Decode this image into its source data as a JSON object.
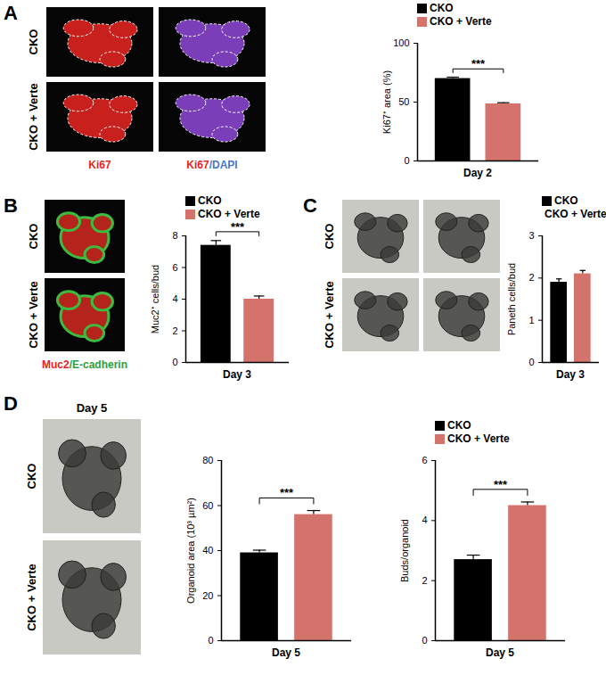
{
  "chart_data": [
    {
      "type": "bar",
      "y_label": "Ki67⁺ area (%)",
      "x_label": "Day 2",
      "categories": [
        "CKO",
        "CKO + Verte"
      ],
      "values": [
        70,
        48.5
      ],
      "errors": [
        1.2,
        1.0
      ],
      "colors": [
        "#000000",
        "#d4736c"
      ],
      "ylim": [
        0,
        100
      ],
      "yticks": [
        0,
        50,
        100
      ],
      "significance": "***",
      "legend": "top"
    },
    {
      "type": "bar",
      "y_label": "Muc2⁺ cells/bud",
      "x_label": "Day 3",
      "categories": [
        "CKO",
        "CKO + Verte"
      ],
      "values": [
        7.4,
        4.0
      ],
      "errors": [
        0.3,
        0.2
      ],
      "colors": [
        "#000000",
        "#d4736c"
      ],
      "ylim": [
        0,
        8
      ],
      "yticks": [
        0,
        2,
        4,
        6,
        8
      ],
      "significance": "***",
      "legend": "top"
    },
    {
      "type": "bar",
      "y_label": "Paneth cells/bud",
      "x_label": "Day 3",
      "categories": [
        "CKO",
        "CKO + Verte"
      ],
      "values": [
        1.9,
        2.1
      ],
      "errors": [
        0.08,
        0.08
      ],
      "colors": [
        "#000000",
        "#d4736c"
      ],
      "ylim": [
        0,
        3
      ],
      "yticks": [
        0,
        1,
        2,
        3
      ],
      "legend": "top"
    },
    {
      "type": "bar",
      "y_label": "Organoid area (10³ µm²)",
      "x_label": "Day 5",
      "categories": [
        "CKO",
        "CKO + Verte"
      ],
      "values": [
        39,
        56
      ],
      "errors": [
        1.2,
        1.8
      ],
      "colors": [
        "#000000",
        "#d4736c"
      ],
      "ylim": [
        0,
        80
      ],
      "yticks": [
        0,
        20,
        40,
        60,
        80
      ],
      "significance": "***"
    },
    {
      "type": "bar",
      "y_label": "Buds/organoid",
      "x_label": "Day 5",
      "categories": [
        "CKO",
        "CKO + Verte"
      ],
      "values": [
        2.7,
        4.5
      ],
      "errors": [
        0.15,
        0.12
      ],
      "colors": [
        "#000000",
        "#d4736c"
      ],
      "ylim": [
        0,
        6
      ],
      "yticks": [
        0,
        2,
        4,
        6
      ],
      "significance": "***",
      "legend": "top"
    }
  ],
  "images": [
    {
      "panel": "A",
      "rows": [
        "CKO",
        "CKO + Verte"
      ],
      "stains": [
        [
          {
            "text": "Ki67",
            "color": "#e3261f"
          }
        ],
        [
          {
            "text": "Ki67",
            "color": "#e3261f"
          },
          {
            "text": "/DAPI",
            "color": "#4a78c8"
          }
        ]
      ]
    },
    {
      "panel": "B",
      "rows": [
        "CKO",
        "CKO + Verte"
      ],
      "stains": [
        [
          {
            "text": "Muc2",
            "color": "#e3261f"
          },
          {
            "text": "/E-cadherin",
            "color": "#2f9e3a"
          }
        ]
      ]
    },
    {
      "panel": "C",
      "rows": [
        "CKO",
        "CKO + Verte"
      ]
    },
    {
      "panel": "D",
      "title": "Day 5",
      "rows": [
        "CKO",
        "CKO + Verte"
      ]
    }
  ]
}
